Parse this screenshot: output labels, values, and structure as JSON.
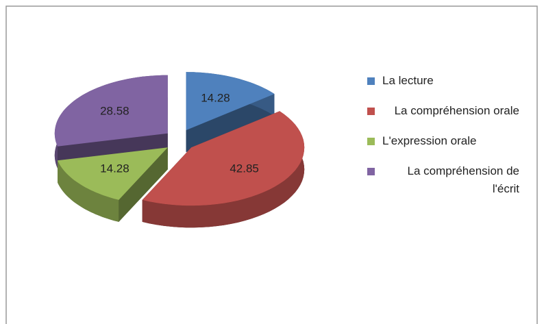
{
  "chart_data": {
    "type": "pie",
    "categories": [
      "La lecture",
      "La compréhension orale",
      "L'expression orale",
      "La compréhension de l'écrit"
    ],
    "values": [
      14.28,
      42.85,
      14.28,
      28.58
    ],
    "colors": [
      "#4f81bd",
      "#c0504d",
      "#9bbb59",
      "#8064a2"
    ],
    "legend": "right"
  }
}
